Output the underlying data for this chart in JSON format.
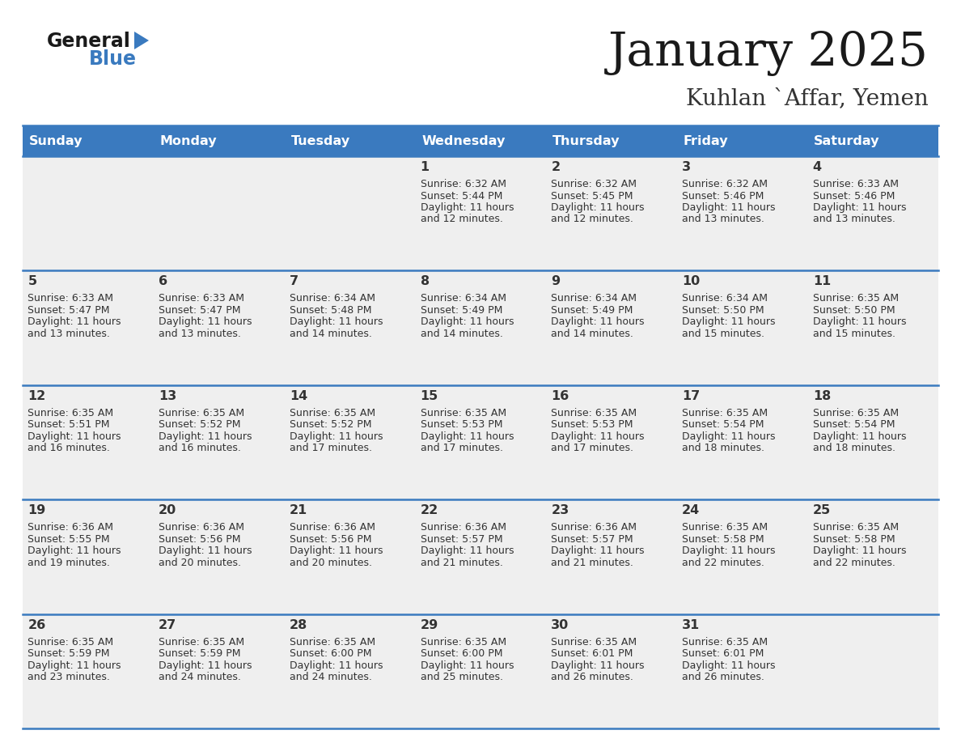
{
  "title": "January 2025",
  "subtitle": "Kuhlan `Affar, Yemen",
  "days_of_week": [
    "Sunday",
    "Monday",
    "Tuesday",
    "Wednesday",
    "Thursday",
    "Friday",
    "Saturday"
  ],
  "header_bg": "#3a7abf",
  "header_text_color": "#ffffff",
  "cell_bg_light": "#efefef",
  "border_color": "#3a7abf",
  "day_number_color": "#333333",
  "text_color": "#333333",
  "title_color": "#1a1a1a",
  "subtitle_color": "#333333",
  "calendar_data": [
    [
      {
        "day": "",
        "sunrise": "",
        "sunset": "",
        "daylight": ""
      },
      {
        "day": "",
        "sunrise": "",
        "sunset": "",
        "daylight": ""
      },
      {
        "day": "",
        "sunrise": "",
        "sunset": "",
        "daylight": ""
      },
      {
        "day": "1",
        "sunrise": "6:32 AM",
        "sunset": "5:44 PM",
        "daylight": "11 hours and 12 minutes."
      },
      {
        "day": "2",
        "sunrise": "6:32 AM",
        "sunset": "5:45 PM",
        "daylight": "11 hours and 12 minutes."
      },
      {
        "day": "3",
        "sunrise": "6:32 AM",
        "sunset": "5:46 PM",
        "daylight": "11 hours and 13 minutes."
      },
      {
        "day": "4",
        "sunrise": "6:33 AM",
        "sunset": "5:46 PM",
        "daylight": "11 hours and 13 minutes."
      }
    ],
    [
      {
        "day": "5",
        "sunrise": "6:33 AM",
        "sunset": "5:47 PM",
        "daylight": "11 hours and 13 minutes."
      },
      {
        "day": "6",
        "sunrise": "6:33 AM",
        "sunset": "5:47 PM",
        "daylight": "11 hours and 13 minutes."
      },
      {
        "day": "7",
        "sunrise": "6:34 AM",
        "sunset": "5:48 PM",
        "daylight": "11 hours and 14 minutes."
      },
      {
        "day": "8",
        "sunrise": "6:34 AM",
        "sunset": "5:49 PM",
        "daylight": "11 hours and 14 minutes."
      },
      {
        "day": "9",
        "sunrise": "6:34 AM",
        "sunset": "5:49 PM",
        "daylight": "11 hours and 14 minutes."
      },
      {
        "day": "10",
        "sunrise": "6:34 AM",
        "sunset": "5:50 PM",
        "daylight": "11 hours and 15 minutes."
      },
      {
        "day": "11",
        "sunrise": "6:35 AM",
        "sunset": "5:50 PM",
        "daylight": "11 hours and 15 minutes."
      }
    ],
    [
      {
        "day": "12",
        "sunrise": "6:35 AM",
        "sunset": "5:51 PM",
        "daylight": "11 hours and 16 minutes."
      },
      {
        "day": "13",
        "sunrise": "6:35 AM",
        "sunset": "5:52 PM",
        "daylight": "11 hours and 16 minutes."
      },
      {
        "day": "14",
        "sunrise": "6:35 AM",
        "sunset": "5:52 PM",
        "daylight": "11 hours and 17 minutes."
      },
      {
        "day": "15",
        "sunrise": "6:35 AM",
        "sunset": "5:53 PM",
        "daylight": "11 hours and 17 minutes."
      },
      {
        "day": "16",
        "sunrise": "6:35 AM",
        "sunset": "5:53 PM",
        "daylight": "11 hours and 17 minutes."
      },
      {
        "day": "17",
        "sunrise": "6:35 AM",
        "sunset": "5:54 PM",
        "daylight": "11 hours and 18 minutes."
      },
      {
        "day": "18",
        "sunrise": "6:35 AM",
        "sunset": "5:54 PM",
        "daylight": "11 hours and 18 minutes."
      }
    ],
    [
      {
        "day": "19",
        "sunrise": "6:36 AM",
        "sunset": "5:55 PM",
        "daylight": "11 hours and 19 minutes."
      },
      {
        "day": "20",
        "sunrise": "6:36 AM",
        "sunset": "5:56 PM",
        "daylight": "11 hours and 20 minutes."
      },
      {
        "day": "21",
        "sunrise": "6:36 AM",
        "sunset": "5:56 PM",
        "daylight": "11 hours and 20 minutes."
      },
      {
        "day": "22",
        "sunrise": "6:36 AM",
        "sunset": "5:57 PM",
        "daylight": "11 hours and 21 minutes."
      },
      {
        "day": "23",
        "sunrise": "6:36 AM",
        "sunset": "5:57 PM",
        "daylight": "11 hours and 21 minutes."
      },
      {
        "day": "24",
        "sunrise": "6:35 AM",
        "sunset": "5:58 PM",
        "daylight": "11 hours and 22 minutes."
      },
      {
        "day": "25",
        "sunrise": "6:35 AM",
        "sunset": "5:58 PM",
        "daylight": "11 hours and 22 minutes."
      }
    ],
    [
      {
        "day": "26",
        "sunrise": "6:35 AM",
        "sunset": "5:59 PM",
        "daylight": "11 hours and 23 minutes."
      },
      {
        "day": "27",
        "sunrise": "6:35 AM",
        "sunset": "5:59 PM",
        "daylight": "11 hours and 24 minutes."
      },
      {
        "day": "28",
        "sunrise": "6:35 AM",
        "sunset": "6:00 PM",
        "daylight": "11 hours and 24 minutes."
      },
      {
        "day": "29",
        "sunrise": "6:35 AM",
        "sunset": "6:00 PM",
        "daylight": "11 hours and 25 minutes."
      },
      {
        "day": "30",
        "sunrise": "6:35 AM",
        "sunset": "6:01 PM",
        "daylight": "11 hours and 26 minutes."
      },
      {
        "day": "31",
        "sunrise": "6:35 AM",
        "sunset": "6:01 PM",
        "daylight": "11 hours and 26 minutes."
      },
      {
        "day": "",
        "sunrise": "",
        "sunset": "",
        "daylight": ""
      }
    ]
  ]
}
